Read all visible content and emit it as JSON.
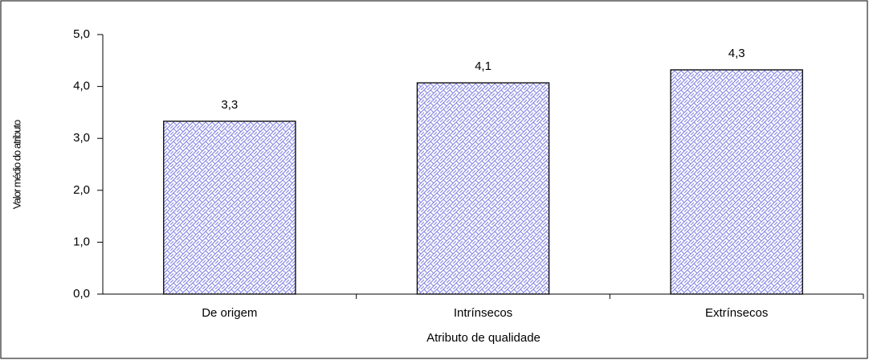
{
  "chart_data": {
    "type": "bar",
    "x_label": "Atributo de qualidade",
    "y_label": "Valor médio do atributo",
    "categories": [
      "De origem",
      "Intrínsecos",
      "Extrínsecos"
    ],
    "values": [
      3.33,
      4.07,
      4.32
    ],
    "value_labels": [
      "3,3",
      "4,1",
      "4,3"
    ],
    "color": "#8c8ce6",
    "ylim": [
      0,
      5
    ],
    "yticks": [
      {
        "value": 0,
        "label": "0,0"
      },
      {
        "value": 1,
        "label": "1,0"
      },
      {
        "value": 2,
        "label": "2,0"
      },
      {
        "value": 3,
        "label": "3,0"
      },
      {
        "value": 4,
        "label": "4,0"
      },
      {
        "value": 5,
        "label": "5,0"
      }
    ],
    "grid": false
  }
}
